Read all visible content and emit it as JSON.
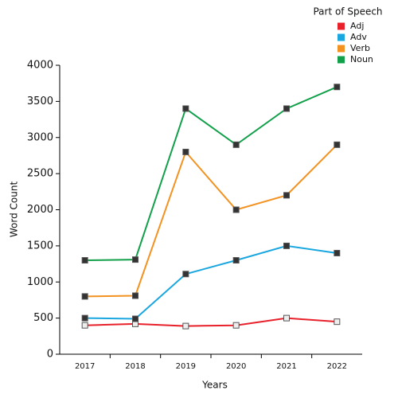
{
  "chart_data": {
    "type": "line",
    "x_label": "Years",
    "y_label": "Word Count",
    "legend_title": "Part of Speech",
    "categories": [
      "2017",
      "2018",
      "2019",
      "2020",
      "2021",
      "2022"
    ],
    "series": [
      {
        "name": "Adj",
        "color": "#e8202a",
        "values": [
          400,
          420,
          390,
          400,
          500,
          450
        ]
      },
      {
        "name": "Adv",
        "color": "#1aa7e0",
        "values": [
          500,
          490,
          1110,
          1300,
          1500,
          1400
        ]
      },
      {
        "name": "Verb",
        "color": "#f39220",
        "values": [
          800,
          810,
          2800,
          2000,
          2200,
          2900
        ]
      },
      {
        "name": "Noun",
        "color": "#12a04a",
        "values": [
          1300,
          1310,
          3400,
          2900,
          3400,
          3700
        ]
      }
    ],
    "ylim": [
      0,
      4000
    ],
    "yticks": [
      0,
      500,
      1000,
      1500,
      2000,
      2500,
      3000,
      3500,
      4000
    ],
    "legend": "top-right",
    "grid": false
  }
}
